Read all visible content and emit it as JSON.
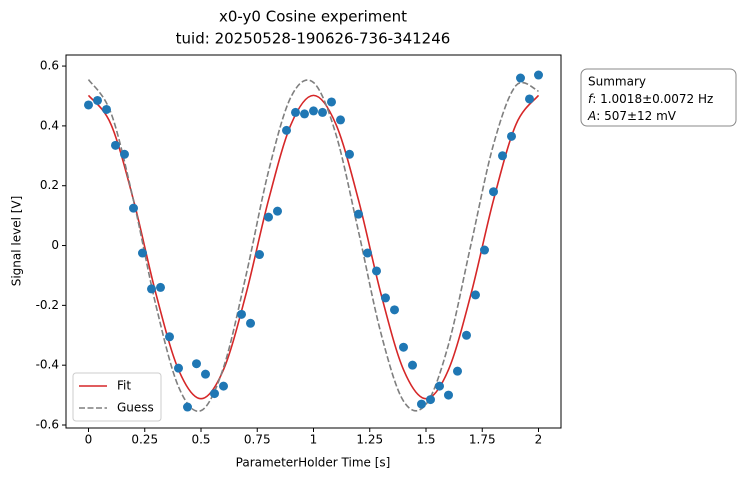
{
  "chart_data": {
    "type": "scatter",
    "title": "x0-y0 Cosine experiment",
    "subtitle": "tuid: 20250528-190626-736-341246",
    "x_label": "ParameterHolder Time [s]",
    "y_label": "Signal level [V]",
    "color": "#1f77b4",
    "x": [
      0,
      0.04,
      0.08,
      0.12,
      0.16,
      0.2,
      0.24,
      0.28,
      0.32,
      0.36,
      0.4,
      0.44,
      0.48,
      0.52,
      0.56,
      0.6,
      0.68,
      0.72,
      0.76,
      0.8,
      0.84,
      0.88,
      0.92,
      0.96,
      1.0,
      1.04,
      1.08,
      1.12,
      1.16,
      1.2,
      1.24,
      1.28,
      1.32,
      1.36,
      1.4,
      1.44,
      1.48,
      1.52,
      1.56,
      1.6,
      1.64,
      1.68,
      1.72,
      1.76,
      1.8,
      1.84,
      1.88,
      1.92,
      1.96,
      2.0
    ],
    "values": [
      0.47,
      0.485,
      0.455,
      0.335,
      0.305,
      0.125,
      -0.025,
      -0.145,
      -0.14,
      -0.305,
      -0.41,
      -0.54,
      -0.395,
      -0.43,
      -0.495,
      -0.47,
      -0.23,
      -0.26,
      -0.03,
      0.095,
      0.115,
      0.385,
      0.445,
      0.44,
      0.45,
      0.445,
      0.48,
      0.42,
      0.305,
      0.105,
      -0.025,
      -0.085,
      -0.175,
      -0.215,
      -0.34,
      -0.4,
      -0.53,
      -0.515,
      -0.47,
      -0.5,
      -0.42,
      -0.3,
      -0.165,
      -0.015,
      0.18,
      0.3,
      0.365,
      0.56,
      0.49,
      0.57
    ],
    "series": [
      {
        "name": "Fit",
        "type": "line",
        "color": "#d62728",
        "dashed": false,
        "x": [
          0,
          0.1,
          0.2,
          0.3,
          0.4,
          0.5,
          0.6,
          0.7,
          0.8,
          0.9,
          1.0,
          1.1,
          1.2,
          1.3,
          1.4,
          1.5,
          1.6,
          1.7,
          1.8,
          1.9,
          2.0
        ],
        "values": [
          0.502,
          0.405,
          0.152,
          -0.162,
          -0.415,
          -0.512,
          -0.415,
          -0.162,
          0.152,
          0.405,
          0.502,
          0.405,
          0.152,
          -0.162,
          -0.415,
          -0.512,
          -0.415,
          -0.162,
          0.152,
          0.405,
          0.502
        ]
      },
      {
        "name": "Guess",
        "type": "line",
        "color": "#7f7f7f",
        "dashed": true,
        "x": [
          0,
          0.1,
          0.2,
          0.3,
          0.4,
          0.5,
          0.6,
          0.7,
          0.8,
          0.9,
          1.0,
          1.1,
          1.2,
          1.3,
          1.4,
          1.5,
          1.6,
          1.7,
          1.8,
          1.9,
          2.0
        ],
        "values": [
          0.555,
          0.443,
          0.151,
          -0.201,
          -0.472,
          -0.552,
          -0.408,
          -0.1,
          0.248,
          0.497,
          0.545,
          0.371,
          0.047,
          -0.294,
          -0.52,
          -0.531,
          -0.331,
          0.004,
          0.338,
          0.535,
          0.516
        ]
      }
    ],
    "xlim": [
      -0.1,
      2.1
    ],
    "ylim": [
      -0.61,
      0.637
    ],
    "xticks": [
      0,
      0.25,
      0.5,
      0.75,
      1,
      1.25,
      1.5,
      1.75,
      2
    ],
    "yticks": [
      -0.6,
      -0.4,
      -0.2,
      0,
      0.2,
      0.4,
      0.6
    ],
    "legend": "lower left",
    "summary": {
      "title": "Summary",
      "lines": [
        {
          "symbol": "f",
          "text": ": 1.0018±0.0072 Hz"
        },
        {
          "symbol": "A",
          "text": ": 507±12 mV"
        }
      ]
    }
  }
}
